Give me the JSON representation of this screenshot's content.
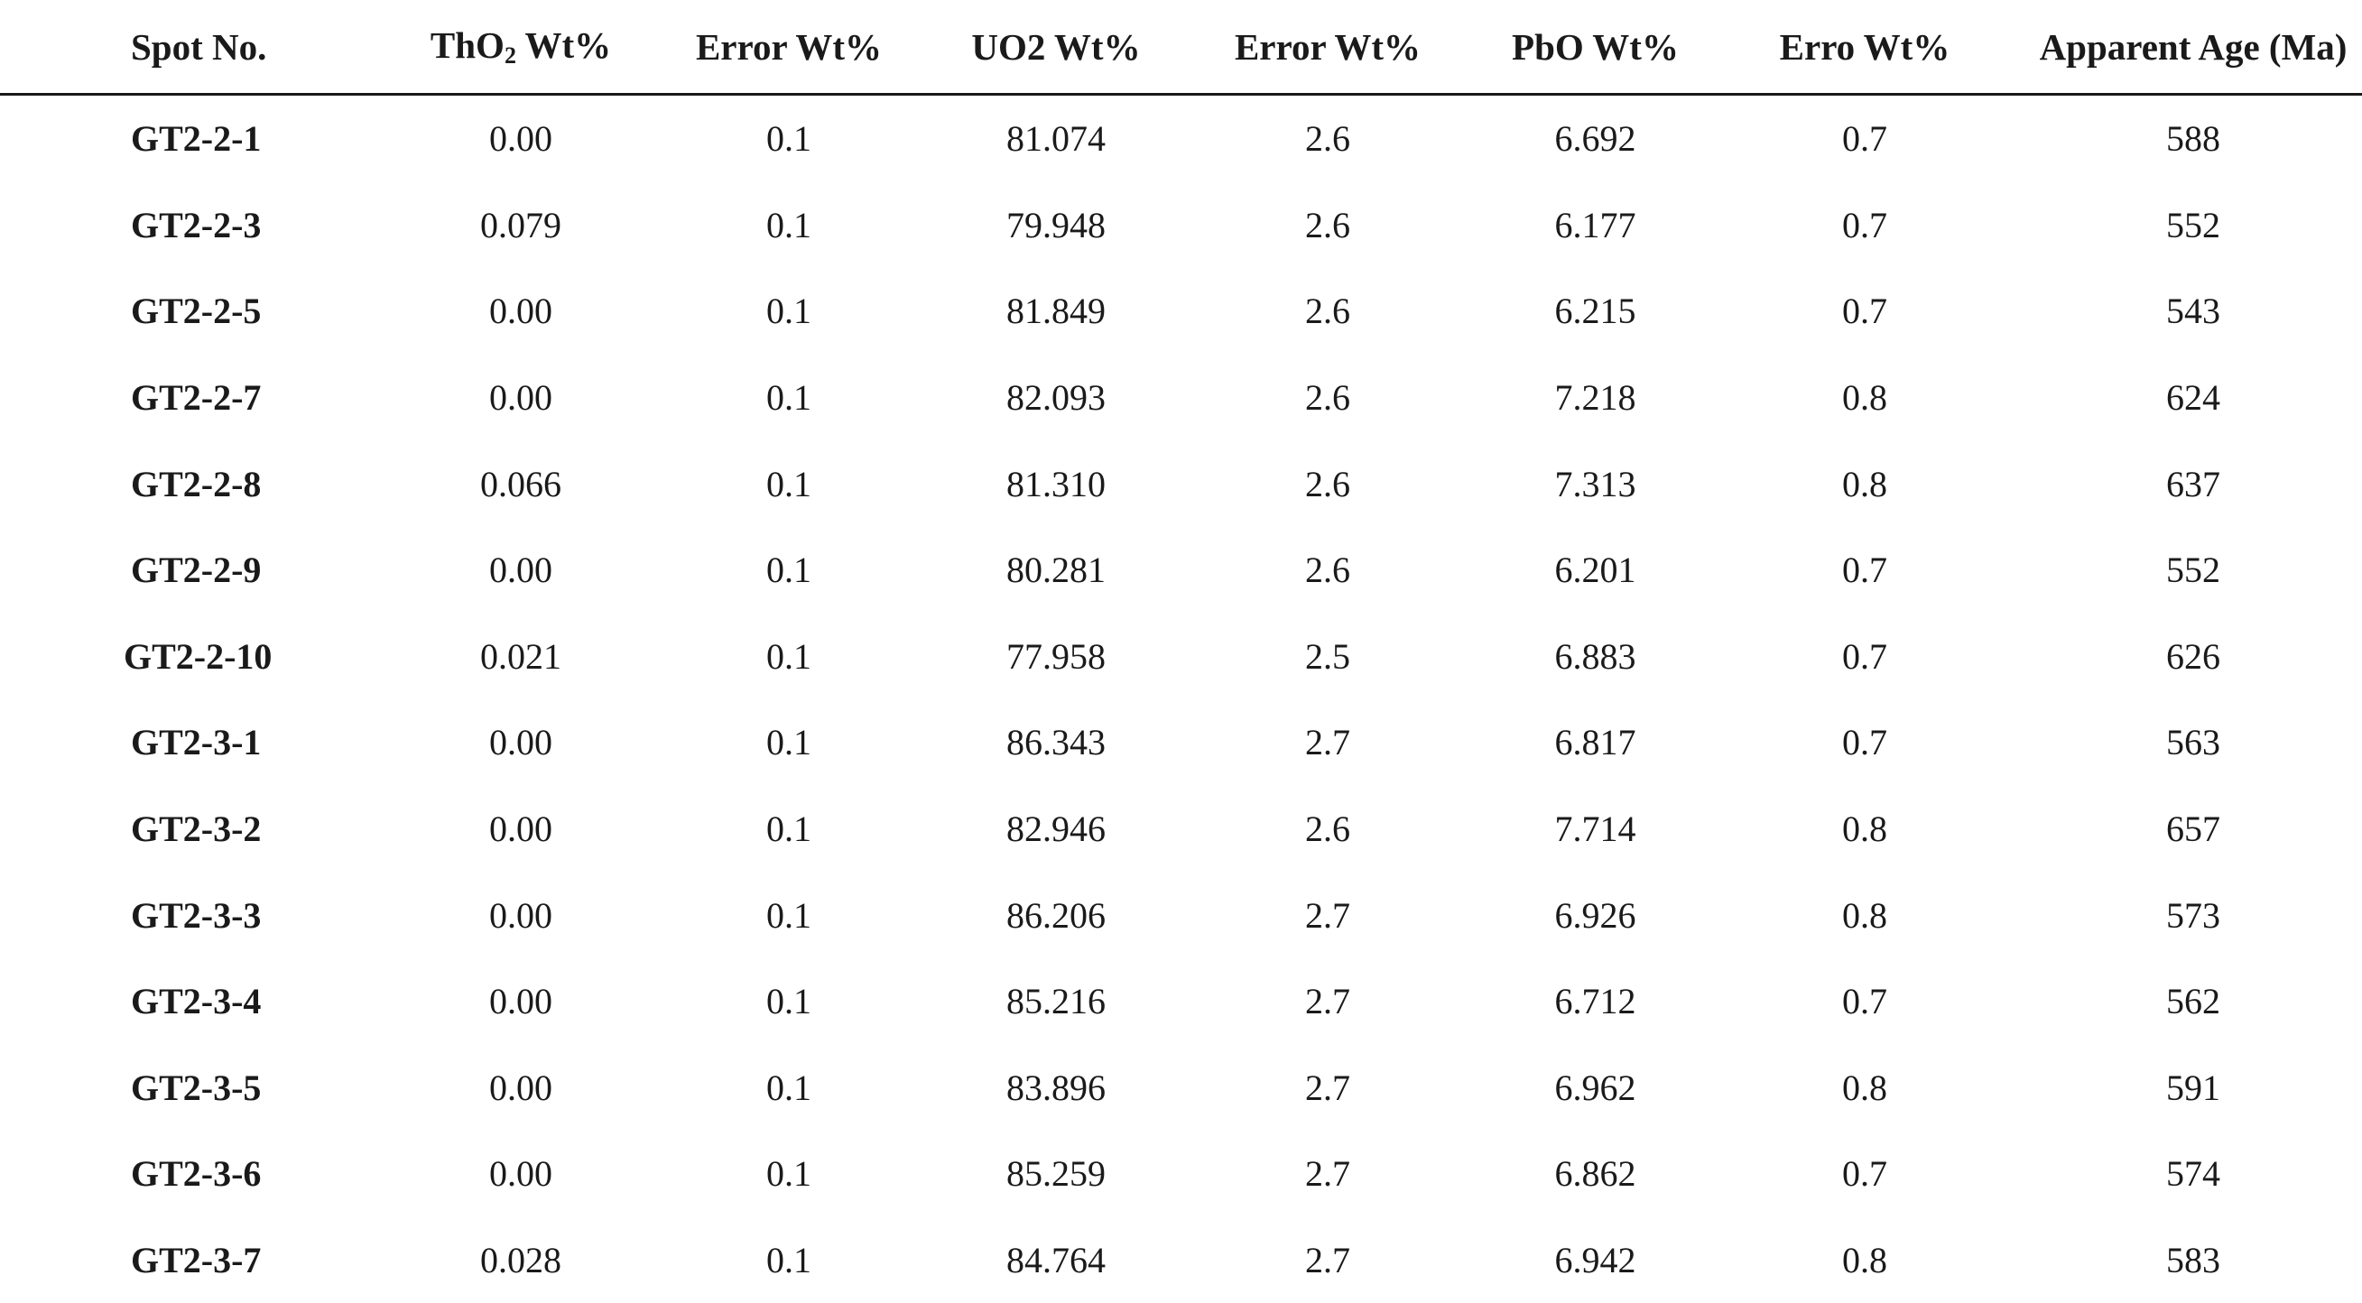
{
  "table": {
    "headers": {
      "spot": "Spot No.",
      "tho2_main": "ThO",
      "tho2_sub": "2",
      "tho2_unit": " Wt%",
      "error1": "Error Wt%",
      "uo2": "UO2 Wt%",
      "error2": "Error Wt%",
      "pbo": "PbO Wt%",
      "error3": "Erro Wt%",
      "age": "Apparent Age (Ma)"
    },
    "rows": [
      [
        "GT2-2-1",
        "0.00",
        "0.1",
        "81.074",
        "2.6",
        "6.692",
        "0.7",
        "588"
      ],
      [
        "GT2-2-3",
        "0.079",
        "0.1",
        "79.948",
        "2.6",
        "6.177",
        "0.7",
        "552"
      ],
      [
        "GT2-2-5",
        "0.00",
        "0.1",
        "81.849",
        "2.6",
        "6.215",
        "0.7",
        "543"
      ],
      [
        "GT2-2-7",
        "0.00",
        "0.1",
        "82.093",
        "2.6",
        "7.218",
        "0.8",
        "624"
      ],
      [
        "GT2-2-8",
        "0.066",
        "0.1",
        "81.310",
        "2.6",
        "7.313",
        "0.8",
        "637"
      ],
      [
        "GT2-2-9",
        "0.00",
        "0.1",
        "80.281",
        "2.6",
        "6.201",
        "0.7",
        "552"
      ],
      [
        "GT2-2-10",
        "0.021",
        "0.1",
        "77.958",
        "2.5",
        "6.883",
        "0.7",
        "626"
      ],
      [
        "GT2-3-1",
        "0.00",
        "0.1",
        "86.343",
        "2.7",
        "6.817",
        "0.7",
        "563"
      ],
      [
        "GT2-3-2",
        "0.00",
        "0.1",
        "82.946",
        "2.6",
        "7.714",
        "0.8",
        "657"
      ],
      [
        "GT2-3-3",
        "0.00",
        "0.1",
        "86.206",
        "2.7",
        "6.926",
        "0.8",
        "573"
      ],
      [
        "GT2-3-4",
        "0.00",
        "0.1",
        "85.216",
        "2.7",
        "6.712",
        "0.7",
        "562"
      ],
      [
        "GT2-3-5",
        "0.00",
        "0.1",
        "83.896",
        "2.7",
        "6.962",
        "0.8",
        "591"
      ],
      [
        "GT2-3-6",
        "0.00",
        "0.1",
        "85.259",
        "2.7",
        "6.862",
        "0.7",
        "574"
      ],
      [
        "GT2-3-7",
        "0.028",
        "0.1",
        "84.764",
        "2.7",
        "6.942",
        "0.8",
        "583"
      ]
    ]
  }
}
